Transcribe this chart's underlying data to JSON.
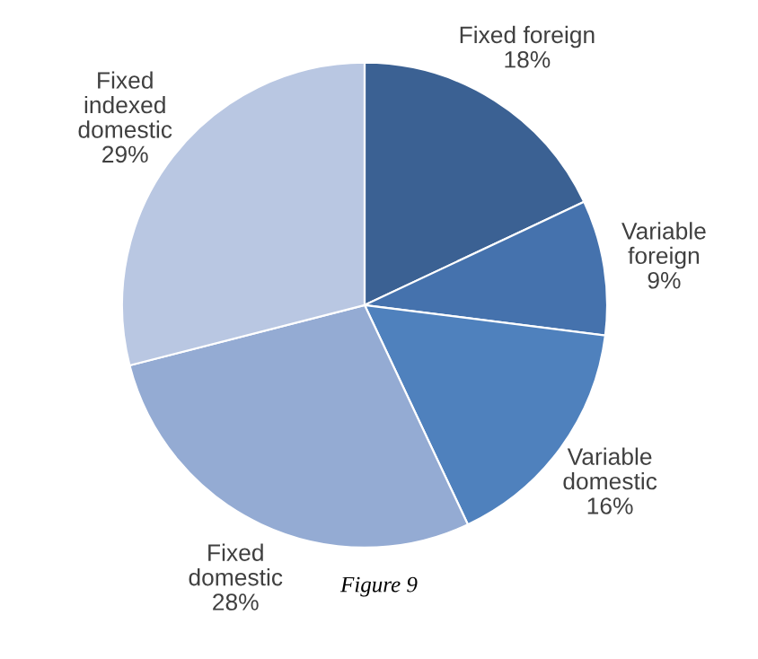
{
  "chart_data": {
    "type": "pie",
    "categories": [
      "Fixed foreign",
      "Variable\nforeign",
      "Variable\ndomestic",
      "Fixed\ndomestic",
      "Fixed\nindexed\ndomestic"
    ],
    "values": [
      18,
      9,
      16,
      28,
      29
    ],
    "value_labels": [
      "18%",
      "9%",
      "16%",
      "28%",
      "29%"
    ],
    "colors": [
      "#3b6193",
      "#4572ad",
      "#4f81bd",
      "#94abd3",
      "#b9c7e2"
    ],
    "annotations": [
      "Figure 9"
    ],
    "legend": false
  }
}
